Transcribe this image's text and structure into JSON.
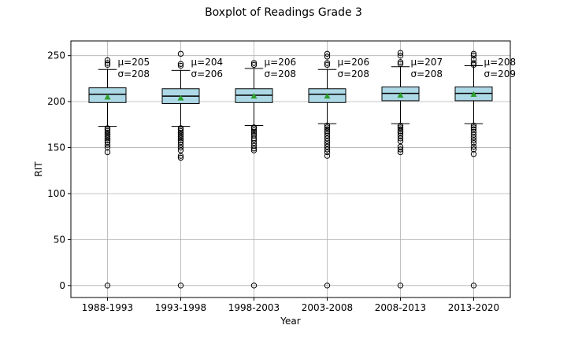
{
  "chart_data": {
    "type": "box",
    "title": "Boxplot of Readings Grade 3",
    "xlabel": "Year",
    "ylabel": "RIT",
    "ylim": [
      -13,
      266
    ],
    "yticks": [
      0,
      50,
      100,
      150,
      200,
      250
    ],
    "ytick_labels": [
      "0",
      "50",
      "100",
      "150",
      "200",
      "250"
    ],
    "grid": true,
    "categories": [
      "1988-1993",
      "1993-1998",
      "1998-2003",
      "2003-2008",
      "2008-2013",
      "2013-2020"
    ],
    "box_color": "#add8e6",
    "median_color": "#000000",
    "mean_marker_color": "#2ca02c",
    "boxes": [
      {
        "q1": 199,
        "median": 208,
        "q3": 215,
        "whisker_low": 173,
        "whisker_high": 235,
        "mean": 205,
        "outliers": [
          0,
          145,
          150,
          153,
          156,
          158,
          160,
          162,
          164,
          166,
          168,
          170,
          171,
          240,
          242,
          245
        ]
      },
      {
        "q1": 198,
        "median": 206,
        "q3": 214,
        "whisker_low": 173,
        "whisker_high": 234,
        "mean": 204,
        "outliers": [
          0,
          139,
          141,
          147,
          150,
          153,
          156,
          158,
          160,
          162,
          164,
          166,
          168,
          170,
          171,
          239,
          241,
          252
        ]
      },
      {
        "q1": 199,
        "median": 207,
        "q3": 214,
        "whisker_low": 174,
        "whisker_high": 236,
        "mean": 206,
        "outliers": [
          0,
          147,
          149,
          152,
          155,
          158,
          160,
          163,
          165,
          167,
          169,
          171,
          172,
          240,
          242
        ]
      },
      {
        "q1": 199,
        "median": 208,
        "q3": 214,
        "whisker_low": 176,
        "whisker_high": 235,
        "mean": 206,
        "outliers": [
          0,
          141,
          145,
          148,
          151,
          154,
          157,
          160,
          163,
          166,
          168,
          170,
          172,
          174,
          240,
          242,
          249,
          252
        ]
      },
      {
        "q1": 201,
        "median": 209,
        "q3": 216,
        "whisker_low": 176,
        "whisker_high": 238,
        "mean": 207,
        "outliers": [
          0,
          145,
          148,
          151,
          157,
          160,
          163,
          166,
          168,
          170,
          172,
          174,
          241,
          243,
          250,
          253
        ]
      },
      {
        "q1": 201,
        "median": 209,
        "q3": 216,
        "whisker_low": 176,
        "whisker_high": 239,
        "mean": 208,
        "outliers": [
          0,
          143,
          148,
          151,
          155,
          158,
          161,
          164,
          167,
          170,
          172,
          174,
          240,
          242,
          246,
          250,
          252
        ]
      }
    ],
    "annotations": [
      {
        "mu_text": "μ=205",
        "sigma_text": "σ=208"
      },
      {
        "mu_text": "μ=204",
        "sigma_text": "σ=206"
      },
      {
        "mu_text": "μ=206",
        "sigma_text": "σ=208"
      },
      {
        "mu_text": "μ=206",
        "sigma_text": "σ=208"
      },
      {
        "mu_text": "μ=207",
        "sigma_text": "σ=208"
      },
      {
        "mu_text": "μ=208",
        "sigma_text": "σ=209"
      }
    ]
  }
}
